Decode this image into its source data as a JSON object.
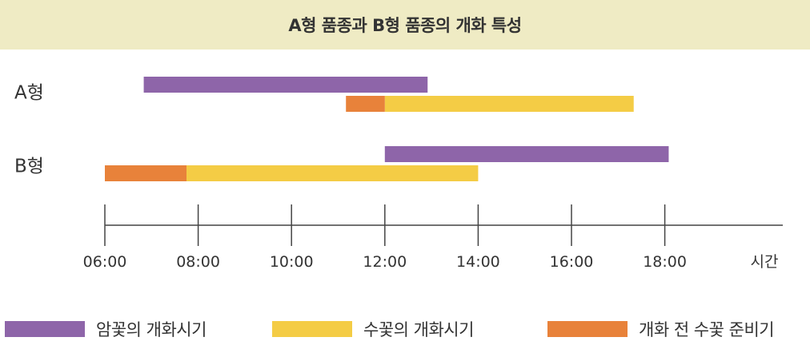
{
  "title": "A형 품종과 B형 품종의 개화 특성",
  "colors": {
    "female": "#8e65a9",
    "male": "#f4cc45",
    "prep": "#e8823a",
    "axis": "#444444",
    "text": "#333333",
    "title_bg": "#efebc4"
  },
  "chart_data": {
    "type": "gantt",
    "title": "A형 품종과 B형 품종의 개화 특성",
    "xlabel": "시간",
    "x_ticks": [
      "06:00",
      "08:00",
      "10:00",
      "12:00",
      "14:00",
      "16:00",
      "18:00"
    ],
    "x_range": [
      "06:00",
      "20:00"
    ],
    "categories": [
      "A형",
      "B형"
    ],
    "series": [
      {
        "name": "암꽃의 개화시기",
        "color_key": "female",
        "bars": [
          {
            "category": "A형",
            "start": "06:50",
            "end": "12:55"
          },
          {
            "category": "B형",
            "start": "12:00",
            "end": "18:05"
          }
        ]
      },
      {
        "name": "수꽃의 개화시기",
        "color_key": "male",
        "bars": [
          {
            "category": "A형",
            "start": "12:00",
            "end": "17:20"
          },
          {
            "category": "B형",
            "start": "07:45",
            "end": "14:00"
          }
        ]
      },
      {
        "name": "개화 전 수꽃 준비기",
        "color_key": "prep",
        "bars": [
          {
            "category": "A형",
            "start": "11:10",
            "end": "12:00"
          },
          {
            "category": "B형",
            "start": "06:00",
            "end": "07:45"
          }
        ]
      }
    ]
  },
  "legend": [
    {
      "label": "암꽃의 개화시기",
      "color_key": "female"
    },
    {
      "label": "수꽃의 개화시기",
      "color_key": "male"
    },
    {
      "label": "개화 전 수꽃 준비기",
      "color_key": "prep"
    }
  ]
}
